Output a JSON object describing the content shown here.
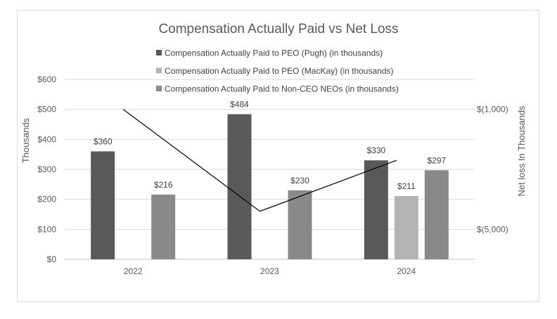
{
  "chart_data": {
    "type": "bar",
    "title": "Compensation Actually Paid vs Net Loss",
    "categories": [
      "2022",
      "2023",
      "2024"
    ],
    "series": [
      {
        "name": "Compensation Actually Paid to PEO (Pugh) (in thousands)",
        "values": [
          360,
          484,
          330
        ],
        "color": "#595959",
        "labels": [
          "$360",
          "$484",
          "$330"
        ]
      },
      {
        "name": "Compensation Actually Paid to PEO (MacKay) (in thousands)",
        "values": [
          null,
          null,
          211
        ],
        "color": "#b3b3b3",
        "labels": [
          "",
          "",
          "$211"
        ]
      },
      {
        "name": "Compensation Actually Paid to Non-CEO NEOs (in thousands)",
        "values": [
          216,
          230,
          297
        ],
        "color": "#898989",
        "labels": [
          "$216",
          "$230",
          "$297"
        ]
      }
    ],
    "net_loss_line": {
      "axis": "secondary",
      "values": [
        -1000,
        -4400,
        -2700
      ],
      "color": "#000000"
    },
    "ylabel": "Thousands",
    "ylim": [
      0,
      600
    ],
    "yticks": [
      "$0",
      "$100",
      "$200",
      "$300",
      "$400",
      "$500",
      "$600"
    ],
    "y2label": "Net loss In Thousands",
    "y2lim": [
      0,
      -6000
    ],
    "y2ticks": [
      {
        "value": -1000,
        "label": "$(1,000)"
      },
      {
        "value": -5000,
        "label": "$(5,000)"
      }
    ],
    "legend_position": "top",
    "grid": true
  }
}
